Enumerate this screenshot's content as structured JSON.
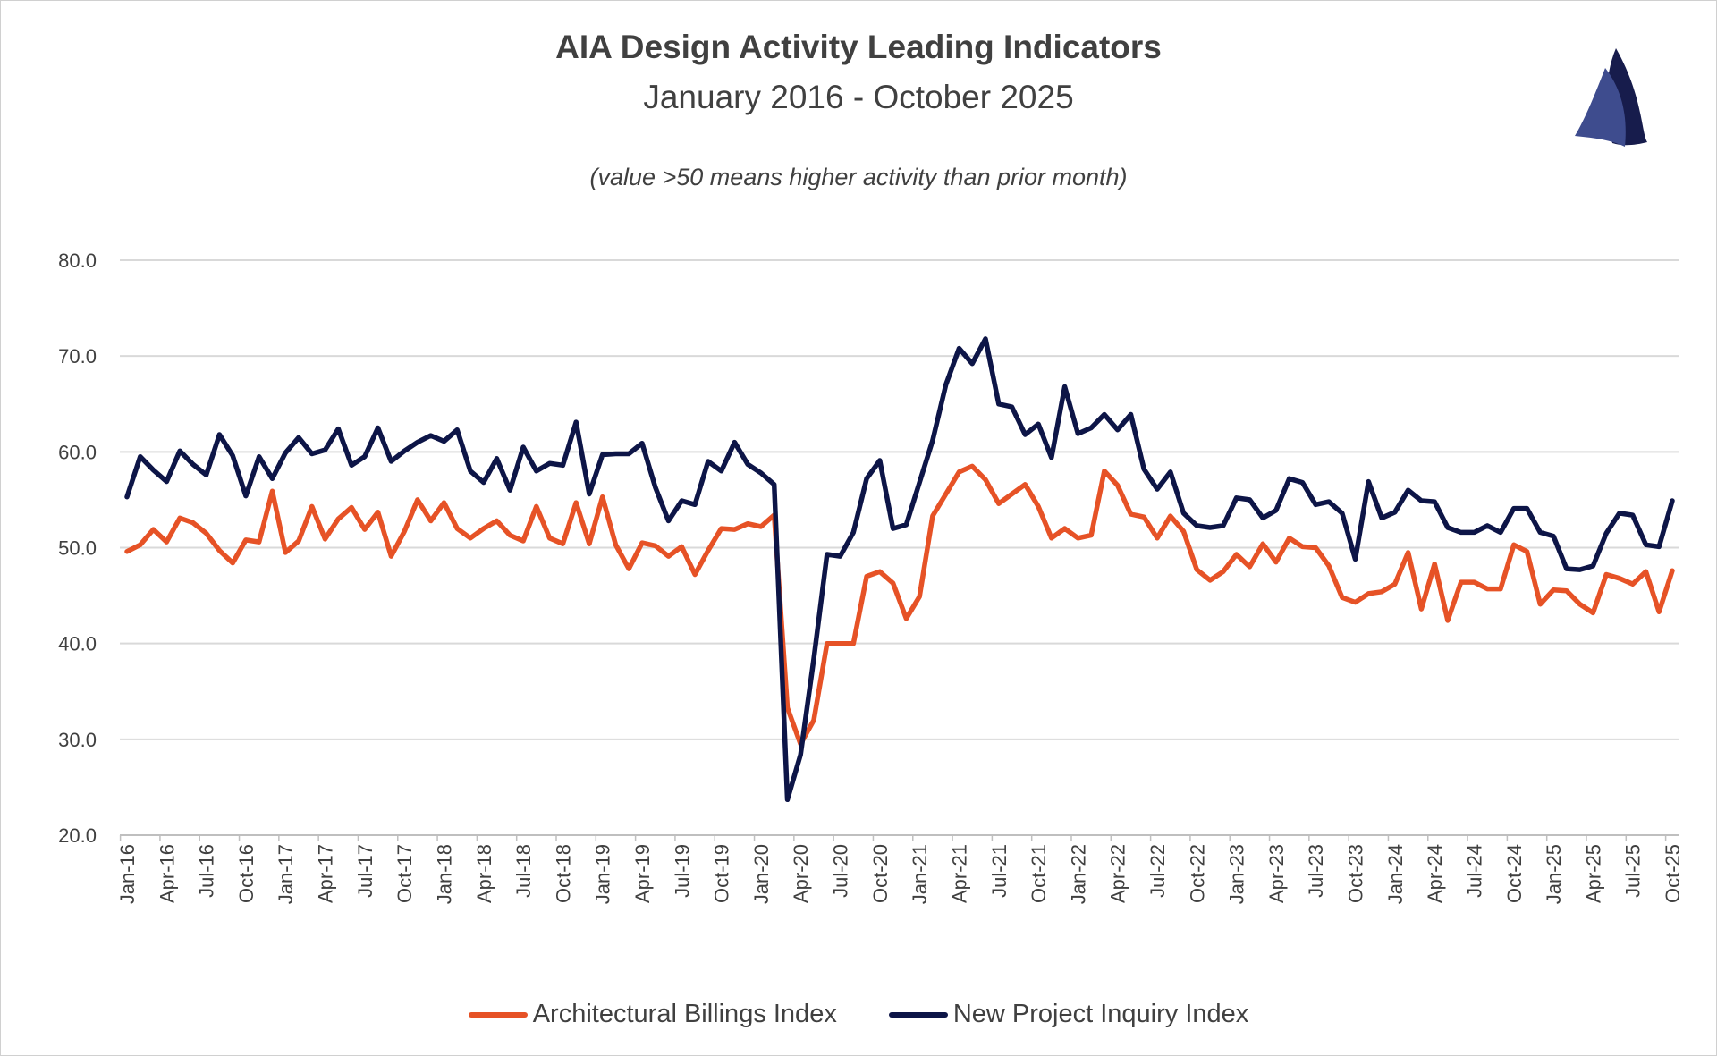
{
  "colors": {
    "abi": "#E65226",
    "npii": "#0D1547",
    "grid": "#D9D9D9",
    "logo_light": "#3E4C8E",
    "logo_dark": "#171C4C"
  },
  "logo": {
    "icon": "sailboat-sails-icon"
  },
  "chart_data": {
    "type": "line",
    "title": "AIA Design Activity Leading Indicators",
    "subtitle": "January 2016 - October 2025",
    "annotation": "(value >50 means higher activity than prior month)",
    "xlabel": "",
    "ylabel": "",
    "ylim": [
      20,
      80
    ],
    "y_ticks": [
      "20.0",
      "30.0",
      "40.0",
      "50.0",
      "60.0",
      "70.0",
      "80.0"
    ],
    "y_tick_values": [
      20,
      30,
      40,
      50,
      60,
      70,
      80
    ],
    "grid": "horizontal",
    "legend": "bottom",
    "x_ticks": [
      "Jan-16",
      "Apr-16",
      "Jul-16",
      "Oct-16",
      "Jan-17",
      "Apr-17",
      "Jul-17",
      "Oct-17",
      "Jan-18",
      "Apr-18",
      "Jul-18",
      "Oct-18",
      "Jan-19",
      "Apr-19",
      "Jul-19",
      "Oct-19",
      "Jan-20",
      "Apr-20",
      "Jul-20",
      "Oct-20",
      "Jan-21",
      "Apr-21",
      "Jul-21",
      "Oct-21",
      "Jan-22",
      "Apr-22",
      "Jul-22",
      "Oct-22",
      "Jan-23",
      "Apr-23",
      "Jul-23",
      "Oct-23",
      "Jan-24",
      "Apr-24",
      "Jul-24",
      "Oct-24",
      "Jan-25",
      "Apr-25",
      "Jul-25",
      "Oct-25"
    ],
    "categories": [
      "Jan-16",
      "Feb-16",
      "Mar-16",
      "Apr-16",
      "May-16",
      "Jun-16",
      "Jul-16",
      "Aug-16",
      "Sep-16",
      "Oct-16",
      "Nov-16",
      "Dec-16",
      "Jan-17",
      "Feb-17",
      "Mar-17",
      "Apr-17",
      "May-17",
      "Jun-17",
      "Jul-17",
      "Aug-17",
      "Sep-17",
      "Oct-17",
      "Nov-17",
      "Dec-17",
      "Jan-18",
      "Feb-18",
      "Mar-18",
      "Apr-18",
      "May-18",
      "Jun-18",
      "Jul-18",
      "Aug-18",
      "Sep-18",
      "Oct-18",
      "Nov-18",
      "Dec-18",
      "Jan-19",
      "Feb-19",
      "Mar-19",
      "Apr-19",
      "May-19",
      "Jun-19",
      "Jul-19",
      "Aug-19",
      "Sep-19",
      "Oct-19",
      "Nov-19",
      "Dec-19",
      "Jan-20",
      "Feb-20",
      "Mar-20",
      "Apr-20",
      "May-20",
      "Jun-20",
      "Jul-20",
      "Aug-20",
      "Sep-20",
      "Oct-20",
      "Nov-20",
      "Dec-20",
      "Jan-21",
      "Feb-21",
      "Mar-21",
      "Apr-21",
      "May-21",
      "Jun-21",
      "Jul-21",
      "Aug-21",
      "Sep-21",
      "Oct-21",
      "Nov-21",
      "Dec-21",
      "Jan-22",
      "Feb-22",
      "Mar-22",
      "Apr-22",
      "May-22",
      "Jun-22",
      "Jul-22",
      "Aug-22",
      "Sep-22",
      "Oct-22",
      "Nov-22",
      "Dec-22",
      "Jan-23",
      "Feb-23",
      "Mar-23",
      "Apr-23",
      "May-23",
      "Jun-23",
      "Jul-23",
      "Aug-23",
      "Sep-23",
      "Oct-23",
      "Nov-23",
      "Dec-23",
      "Jan-24",
      "Feb-24",
      "Mar-24",
      "Apr-24",
      "May-24",
      "Jun-24",
      "Jul-24",
      "Aug-24",
      "Sep-24",
      "Oct-24",
      "Nov-24",
      "Dec-24",
      "Jan-25",
      "Feb-25",
      "Mar-25",
      "Apr-25",
      "May-25",
      "Jun-25",
      "Jul-25",
      "Aug-25",
      "Sep-25",
      "Oct-25"
    ],
    "series": [
      {
        "name": "Architectural Billings Index",
        "color": "#E65226",
        "values": [
          49.6,
          50.3,
          51.9,
          50.6,
          53.1,
          52.6,
          51.5,
          49.7,
          48.4,
          50.8,
          50.6,
          55.9,
          49.5,
          50.7,
          54.3,
          50.9,
          53.0,
          54.2,
          51.9,
          53.7,
          49.1,
          51.7,
          55.0,
          52.8,
          54.7,
          52.0,
          51.0,
          52.0,
          52.8,
          51.3,
          50.7,
          54.3,
          51.0,
          50.4,
          54.7,
          50.4,
          55.3,
          50.3,
          47.8,
          50.5,
          50.2,
          49.1,
          50.1,
          47.2,
          49.7,
          52.0,
          51.9,
          52.5,
          52.2,
          53.4,
          33.3,
          29.5,
          32.0,
          40.0,
          40.0,
          40.0,
          47.0,
          47.5,
          46.3,
          42.6,
          44.9,
          53.3,
          55.6,
          57.9,
          58.5,
          57.1,
          54.6,
          55.6,
          56.6,
          54.3,
          51.0,
          52.0,
          51.0,
          51.3,
          58.0,
          56.5,
          53.5,
          53.2,
          51.0,
          53.3,
          51.7,
          47.7,
          46.6,
          47.5,
          49.3,
          48.0,
          50.4,
          48.5,
          51.0,
          50.1,
          50.0,
          48.1,
          44.8,
          44.3,
          45.2,
          45.4,
          46.2,
          49.5,
          43.6,
          48.3,
          42.4,
          46.4,
          46.4,
          45.7,
          45.7,
          50.3,
          49.6,
          44.1,
          45.6,
          45.5,
          44.1,
          43.2,
          47.2,
          46.8,
          46.2,
          47.5,
          43.3,
          47.6
        ]
      },
      {
        "name": "New Project Inquiry Index",
        "color": "#0D1547",
        "values": [
          55.3,
          59.5,
          58.1,
          56.9,
          60.1,
          58.7,
          57.6,
          61.8,
          59.6,
          55.4,
          59.5,
          57.2,
          59.9,
          61.5,
          59.8,
          60.2,
          62.4,
          58.6,
          59.5,
          62.5,
          59.0,
          60.1,
          61.0,
          61.7,
          61.1,
          62.3,
          58.0,
          56.8,
          59.3,
          56.0,
          60.5,
          58.0,
          58.8,
          58.6,
          63.1,
          55.6,
          59.7,
          59.8,
          59.8,
          60.9,
          56.3,
          52.8,
          54.9,
          54.5,
          59.0,
          58.0,
          61.0,
          58.7,
          57.8,
          56.6,
          23.7,
          28.4,
          38.4,
          49.3,
          49.1,
          51.6,
          57.2,
          59.1,
          52.0,
          52.4,
          56.8,
          61.2,
          67.0,
          70.8,
          69.2,
          71.8,
          65.0,
          64.7,
          61.8,
          62.9,
          59.4,
          66.8,
          61.9,
          62.5,
          63.9,
          62.3,
          63.9,
          58.2,
          56.1,
          57.9,
          53.6,
          52.3,
          52.1,
          52.3,
          55.2,
          55.0,
          53.1,
          53.9,
          57.2,
          56.8,
          54.5,
          54.8,
          53.6,
          48.8,
          56.9,
          53.1,
          53.7,
          56.0,
          54.9,
          54.8,
          52.1,
          51.6,
          51.6,
          52.3,
          51.6,
          54.1,
          54.1,
          51.6,
          51.2,
          47.8,
          47.7,
          48.1,
          51.5,
          53.6,
          53.4,
          50.3,
          50.1,
          54.9
        ]
      }
    ]
  }
}
